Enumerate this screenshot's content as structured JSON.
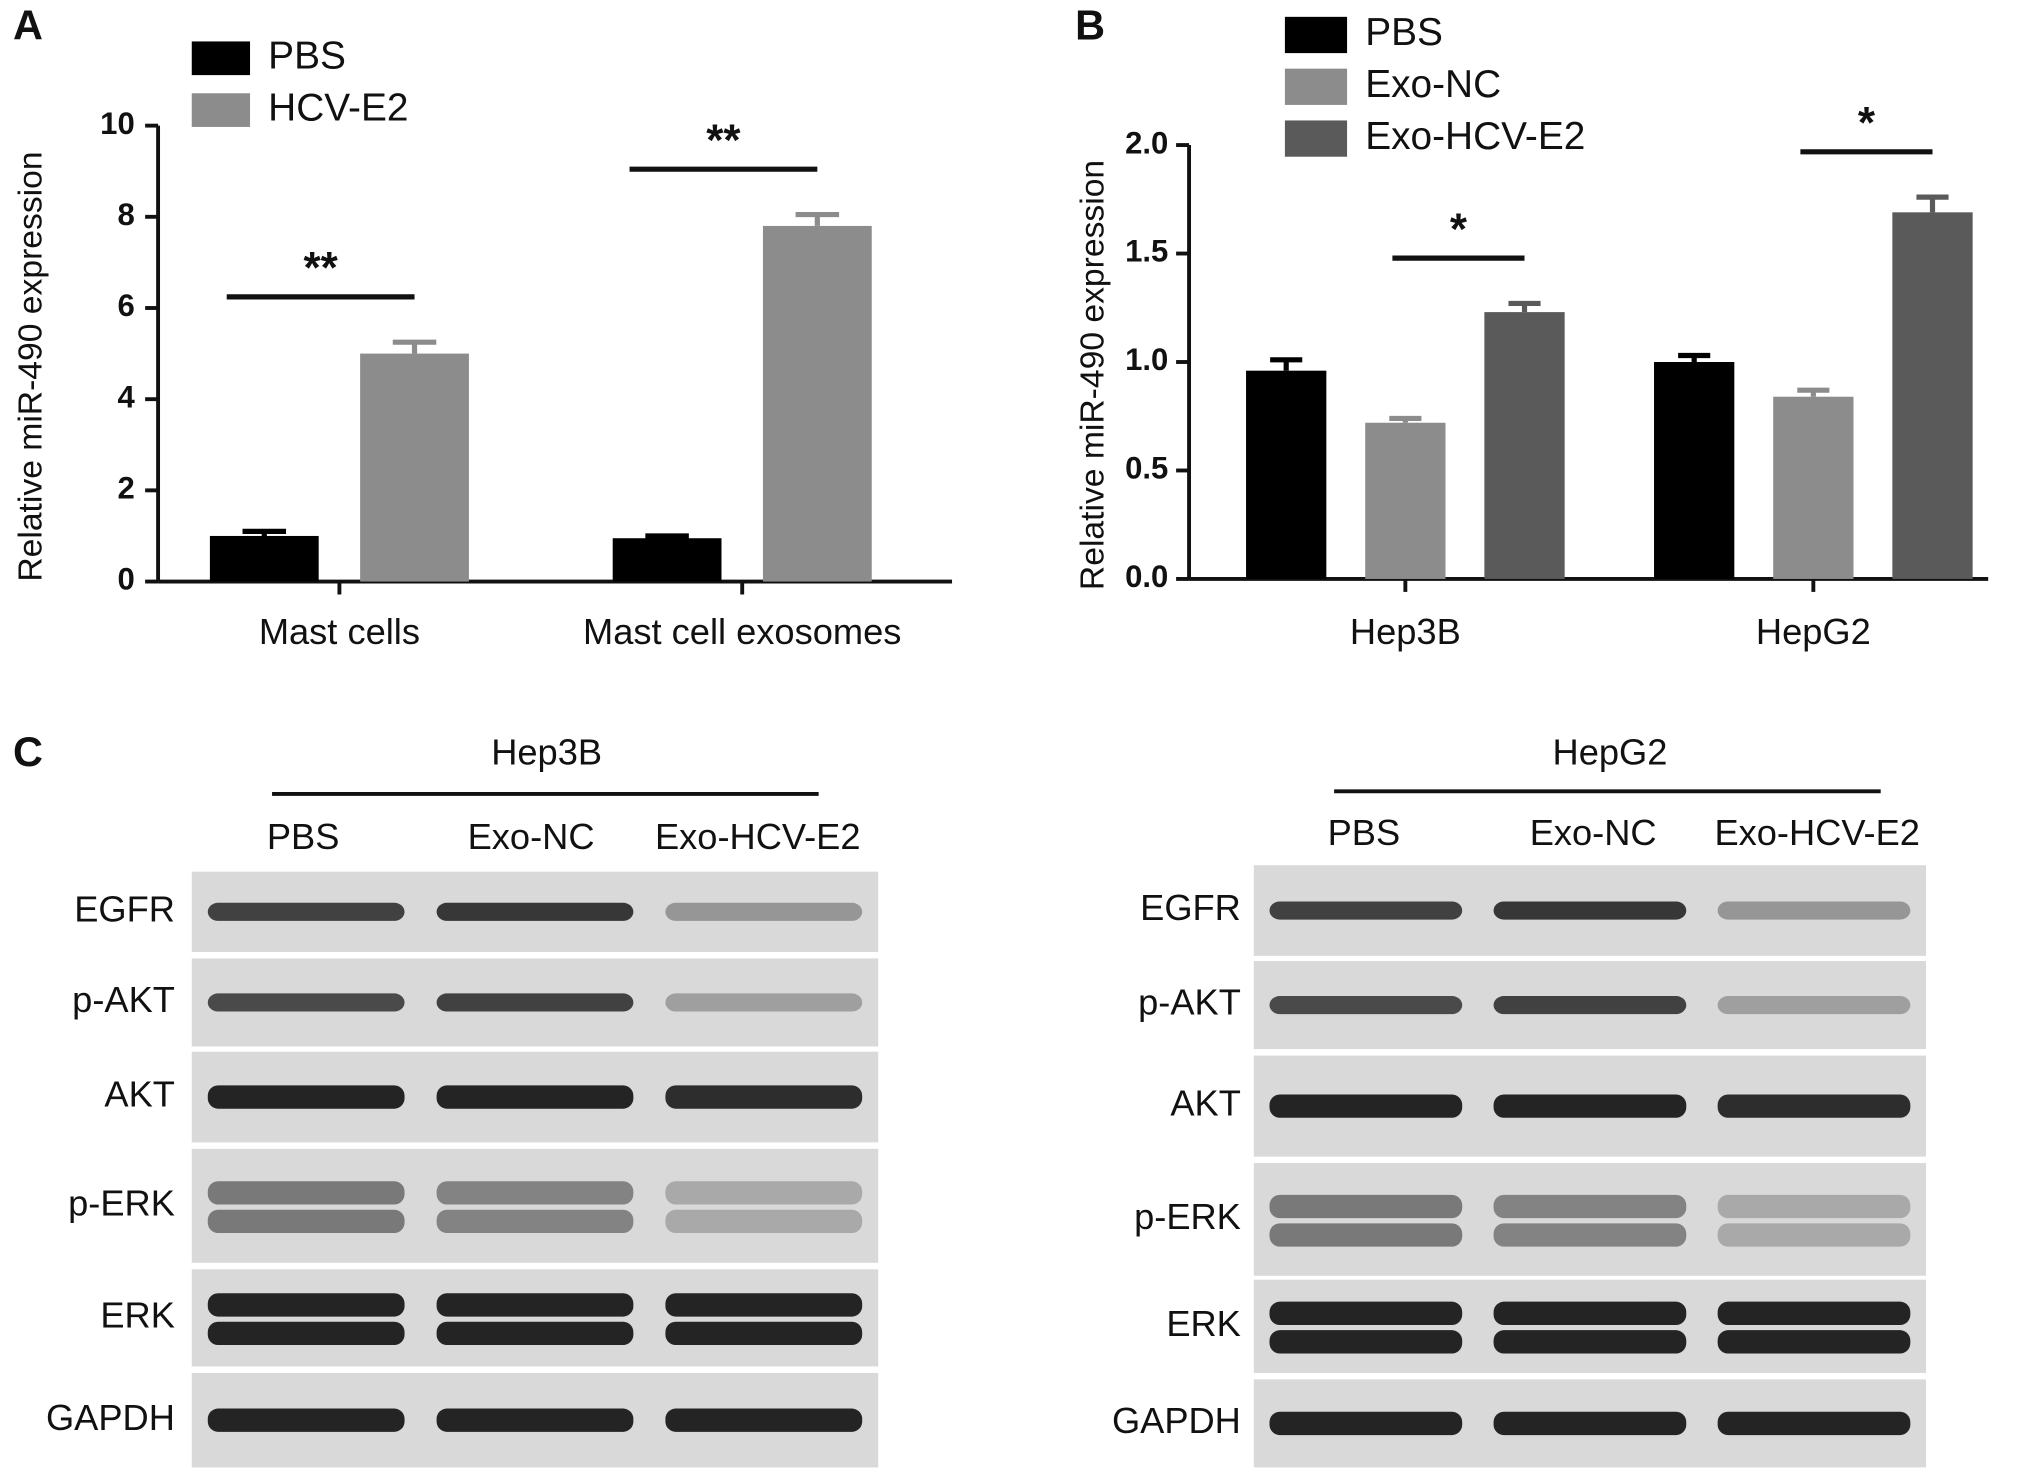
{
  "panels": [
    "A",
    "B",
    "C"
  ],
  "chart_data": [
    {
      "type": "bar",
      "y_label": "Relative miR-490 expression",
      "categories": [
        "Mast cells",
        "Mast cell exosomes"
      ],
      "series": [
        {
          "name": "PBS",
          "color": "#000000",
          "values": [
            1.0,
            0.95
          ],
          "errors": [
            0.1,
            0.05
          ]
        },
        {
          "name": "HCV-E2",
          "color": "#8c8c8c",
          "values": [
            5.0,
            7.8
          ],
          "errors": [
            0.25,
            0.25
          ]
        }
      ],
      "annotations": [
        "**",
        "**"
      ],
      "ylim": [
        0,
        10
      ],
      "yticks": [
        0,
        2,
        4,
        6,
        8,
        10
      ]
    },
    {
      "type": "bar",
      "y_label": "Relative miR-490 expression",
      "categories": [
        "Hep3B",
        "HepG2"
      ],
      "series": [
        {
          "name": "PBS",
          "color": "#000000",
          "values": [
            0.96,
            1.0
          ],
          "errors": [
            0.05,
            0.03
          ]
        },
        {
          "name": "Exo-NC",
          "color": "#8c8c8c",
          "values": [
            0.72,
            0.84
          ],
          "errors": [
            0.02,
            0.03
          ]
        },
        {
          "name": "Exo-HCV-E2",
          "color": "#5a5a5a",
          "values": [
            1.23,
            1.69
          ],
          "errors": [
            0.04,
            0.07
          ]
        }
      ],
      "annotations": [
        "*",
        "*"
      ],
      "ylim": [
        0,
        2
      ],
      "yticks": [
        {
          "value": 0,
          "label": "0.0"
        },
        0.5,
        {
          "value": 1,
          "label": "1.0"
        },
        1.5,
        {
          "value": 2,
          "label": "2.0"
        }
      ]
    }
  ],
  "blots": [
    {
      "cell_line": "Hep3B",
      "lanes": [
        "PBS",
        "Exo-NC",
        "Exo-HCV-E2"
      ],
      "proteins": [
        "EGFR",
        "p-AKT",
        "AKT",
        "p-ERK",
        "ERK",
        "GAPDH"
      ]
    },
    {
      "cell_line": "HepG2",
      "lanes": [
        "PBS",
        "Exo-NC",
        "Exo-HCV-E2"
      ],
      "proteins": [
        "EGFR",
        "p-AKT",
        "AKT",
        "p-ERK",
        "ERK",
        "GAPDH"
      ]
    }
  ]
}
